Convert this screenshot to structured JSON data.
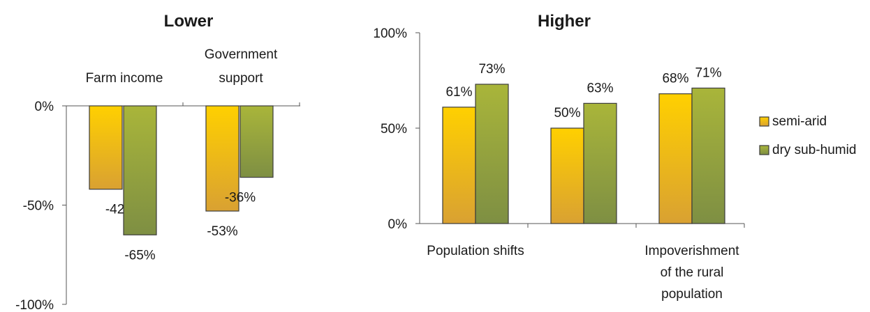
{
  "chart_data": [
    {
      "type": "bar",
      "title": "Lower",
      "categories": [
        [
          "Farm income"
        ],
        [
          "Government",
          "support"
        ]
      ],
      "series": [
        {
          "name": "semi-arid",
          "values": [
            -42,
            -53
          ]
        },
        {
          "name": "dry sub-humid",
          "values": [
            -65,
            -36
          ]
        }
      ],
      "ylim": [
        -100,
        0
      ],
      "yticks": [
        "0%",
        "-50%",
        "-100%"
      ],
      "data_labels": [
        [
          "-42%",
          "-53%"
        ],
        [
          "-65%",
          "-36%"
        ]
      ],
      "grid": false
    },
    {
      "type": "bar",
      "title": "Higher",
      "categories": [
        [
          "Population shifts"
        ],
        [],
        [
          "Impoverishment",
          "of the rural",
          "population"
        ]
      ],
      "series": [
        {
          "name": "semi-arid",
          "values": [
            61,
            50,
            68
          ]
        },
        {
          "name": "dry sub-humid",
          "values": [
            73,
            63,
            71
          ]
        }
      ],
      "ylim": [
        0,
        100
      ],
      "yticks": [
        "100%",
        "50%",
        "0%"
      ],
      "data_labels": [
        [
          "61%",
          "50%",
          "68%"
        ],
        [
          "73%",
          "63%",
          "71%"
        ]
      ],
      "grid": false
    }
  ],
  "legend": {
    "placement": "right",
    "items": [
      {
        "label": "semi-arid",
        "color_top": "#ffd000",
        "color_bottom": "#d9a132"
      },
      {
        "label": "dry sub-humid",
        "color_top": "#a9b53a",
        "color_bottom": "#7e8f43"
      }
    ]
  }
}
